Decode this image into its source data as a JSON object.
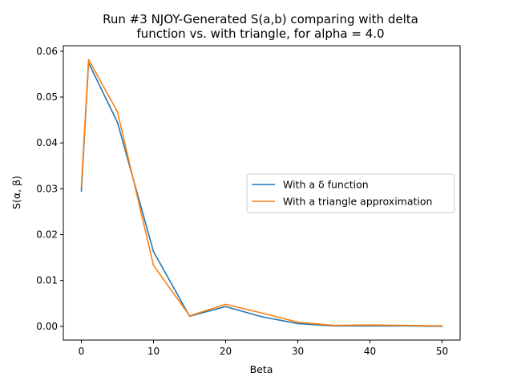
{
  "chart_data": {
    "type": "line",
    "title_lines": [
      "Run #3 NJOY-Generated S(a,b) comparing with delta",
      "function vs. with triangle, for alpha = 4.0"
    ],
    "xlabel": "Beta",
    "ylabel": "S(α, β)",
    "xlim": [
      -2.5,
      52.5
    ],
    "ylim": [
      -0.003,
      0.0612
    ],
    "xticks": [
      0,
      10,
      20,
      30,
      40,
      50
    ],
    "yticks": [
      0.0,
      0.01,
      0.02,
      0.03,
      0.04,
      0.05,
      0.06
    ],
    "ytick_labels": [
      "0.00",
      "0.01",
      "0.02",
      "0.03",
      "0.04",
      "0.05",
      "0.06"
    ],
    "grid": false,
    "legend_position": "center-right",
    "series": [
      {
        "name": "With a δ function",
        "color": "#1f77b4",
        "x": [
          0,
          1,
          5,
          10,
          15,
          20,
          25,
          30,
          35,
          40,
          45,
          50
        ],
        "y": [
          0.0295,
          0.0575,
          0.0445,
          0.0163,
          0.0022,
          0.0043,
          0.0021,
          0.0006,
          0.0001,
          0.0001,
          0.0001,
          0.0
        ]
      },
      {
        "name": "With a triangle approximation",
        "color": "#ff7f0e",
        "x": [
          0,
          1,
          5,
          10,
          15,
          20,
          25,
          30,
          35,
          40,
          45,
          50
        ],
        "y": [
          0.0305,
          0.0582,
          0.0468,
          0.0133,
          0.0023,
          0.0048,
          0.0029,
          0.0009,
          0.0002,
          0.0003,
          0.0002,
          0.0001
        ]
      }
    ]
  }
}
